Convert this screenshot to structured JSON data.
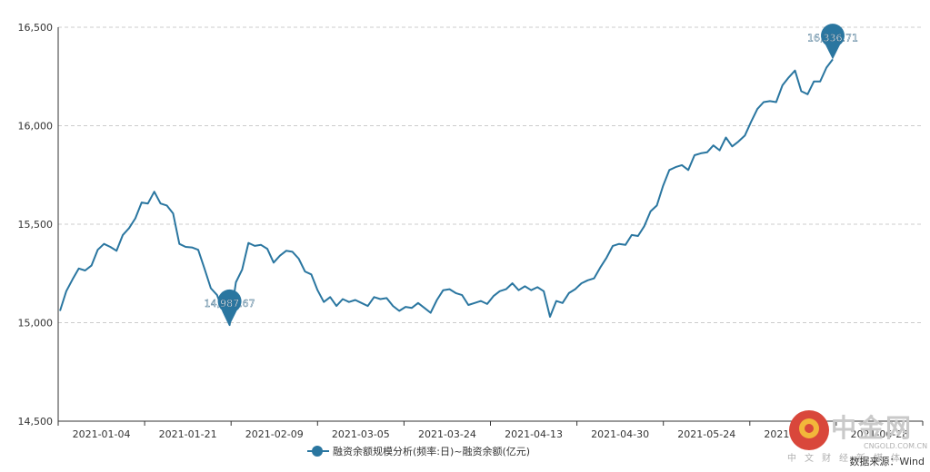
{
  "chart_data": {
    "type": "line",
    "ylim": [
      14500,
      16500
    ],
    "yticks": [
      "14,500",
      "15,000",
      "15,500",
      "16,000",
      "16,500"
    ],
    "yticks_values": [
      14500,
      15000,
      15500,
      16000,
      16500
    ],
    "xtick_labels": [
      "2021-01-04",
      "2021-01-21",
      "2021-02-09",
      "2021-03-05",
      "2021-03-24",
      "2021-04-13",
      "2021-04-30",
      "2021-05-24",
      "2021-06-10",
      "2021-06-28"
    ],
    "grid": true,
    "legend_position": "bottom",
    "series": [
      {
        "name": "融资余额规模分析(频率:日)~融资余额(亿元)",
        "color": "#2a76a0",
        "values": [
          15060,
          15160,
          15220,
          15275,
          15265,
          15290,
          15370,
          15400,
          15385,
          15365,
          15445,
          15480,
          15530,
          15610,
          15605,
          15665,
          15605,
          15595,
          15555,
          15400,
          15385,
          15382,
          15370,
          15275,
          15175,
          15140,
          15055,
          14988,
          15205,
          15270,
          15405,
          15390,
          15395,
          15375,
          15305,
          15340,
          15365,
          15360,
          15325,
          15260,
          15245,
          15165,
          15105,
          15130,
          15085,
          15120,
          15105,
          15115,
          15100,
          15085,
          15130,
          15120,
          15125,
          15085,
          15060,
          15080,
          15075,
          15100,
          15075,
          15050,
          15115,
          15165,
          15170,
          15150,
          15140,
          15090,
          15100,
          15110,
          15095,
          15135,
          15160,
          15170,
          15200,
          15165,
          15185,
          15165,
          15180,
          15160,
          15030,
          15110,
          15100,
          15150,
          15170,
          15200,
          15215,
          15225,
          15280,
          15330,
          15390,
          15400,
          15395,
          15445,
          15440,
          15490,
          15565,
          15595,
          15695,
          15775,
          15790,
          15800,
          15775,
          15850,
          15860,
          15865,
          15900,
          15875,
          15940,
          15895,
          15920,
          15950,
          16020,
          16085,
          16120,
          16125,
          16120,
          16205,
          16245,
          16280,
          16175,
          16160,
          16225,
          16225,
          16295,
          16337
        ]
      }
    ],
    "annotations": [
      {
        "label": "14,987.67",
        "index": 27,
        "value": 14987.67
      },
      {
        "label": "16,336.71",
        "index": 123,
        "value": 16336.71
      }
    ]
  },
  "legend": {
    "label": "融资余额规模分析(频率:日)~融资余额(亿元)"
  },
  "source": "数据来源：Wind",
  "logo": {
    "name": "中金网",
    "domain": "CNGOLD.COM.CN",
    "tagline": "中文财经新媒体"
  },
  "colors": {
    "line": "#2a76a0",
    "grid": "#cccccc",
    "axis": "#333333"
  }
}
